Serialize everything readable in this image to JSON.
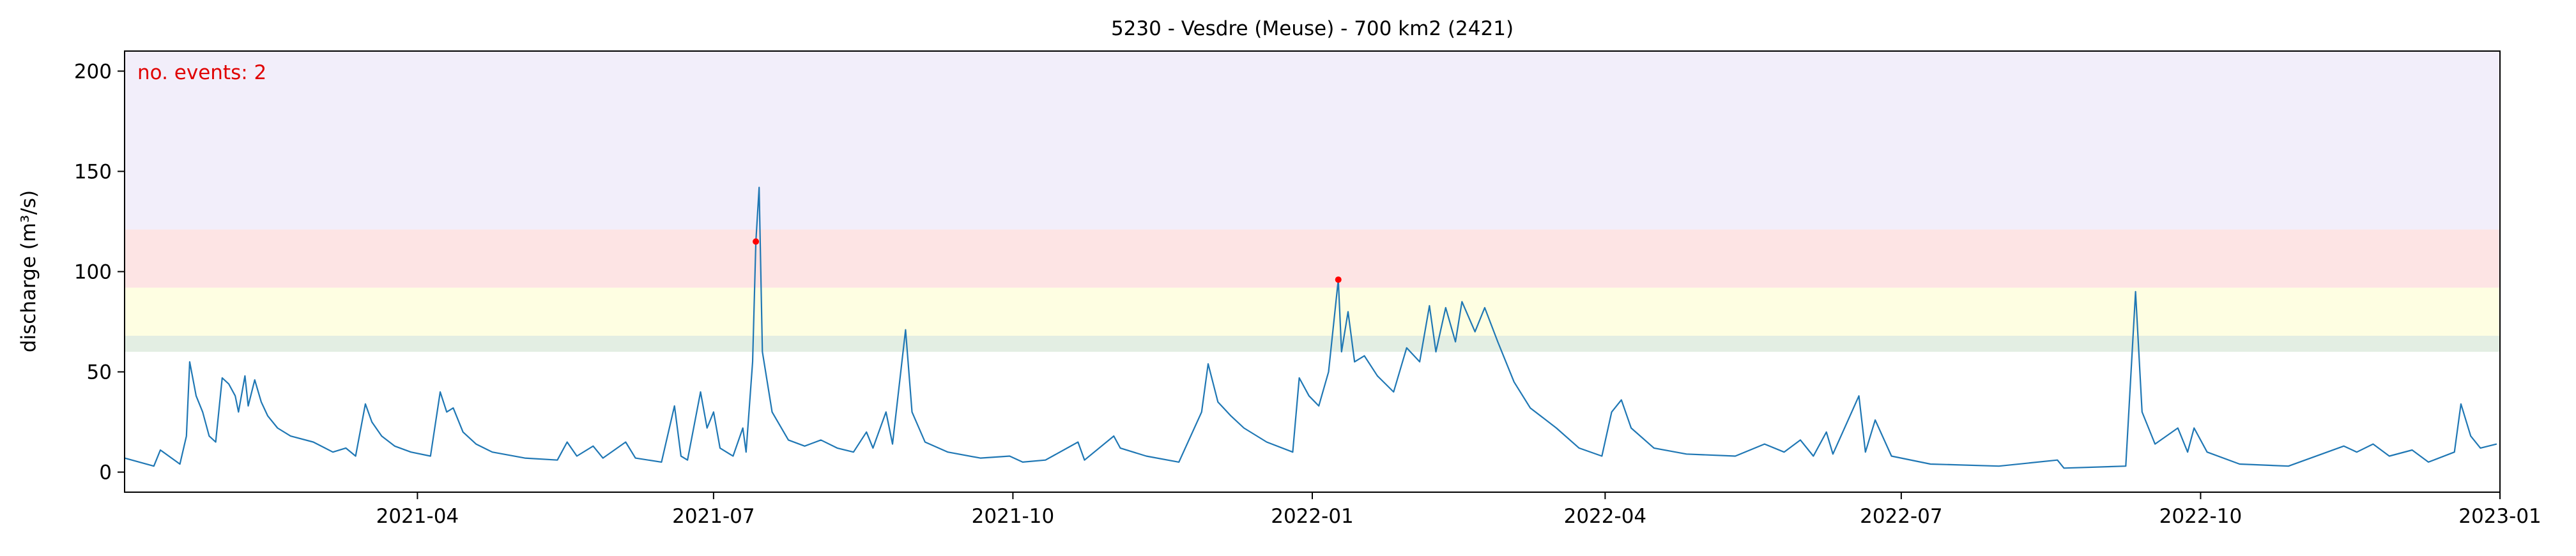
{
  "chart_data": {
    "type": "line",
    "title": "5230 - Vesdre (Meuse) - 700 km2 (2421)",
    "ylabel": "discharge (m³/s)",
    "annotation": "no. events: 2",
    "annotation_color": "#e00000",
    "xlim": [
      "2021-01-01",
      "2023-01-01"
    ],
    "ylim": [
      -10,
      210
    ],
    "yticks": [
      0,
      50,
      100,
      150,
      200
    ],
    "xticks": [
      {
        "value": "2021-04-01",
        "label": "2021-04"
      },
      {
        "value": "2021-07-01",
        "label": "2021-07"
      },
      {
        "value": "2021-10-01",
        "label": "2021-10"
      },
      {
        "value": "2022-01-01",
        "label": "2022-01"
      },
      {
        "value": "2022-04-01",
        "label": "2022-04"
      },
      {
        "value": "2022-07-01",
        "label": "2022-07"
      },
      {
        "value": "2022-10-01",
        "label": "2022-10"
      },
      {
        "value": "2023-01-01",
        "label": "2023-01"
      }
    ],
    "bands": [
      {
        "from": 60,
        "to": 68,
        "color": "#e3eee3"
      },
      {
        "from": 68,
        "to": 92,
        "color": "#fefee2"
      },
      {
        "from": 92,
        "to": 121,
        "color": "#fde4e4"
      },
      {
        "from": 121,
        "to": 210,
        "color": "#f2eefa"
      }
    ],
    "color": "#1f77b4",
    "x": [
      "2021-01-01",
      "2021-01-10",
      "2021-01-12",
      "2021-01-18",
      "2021-01-20",
      "2021-01-21",
      "2021-01-23",
      "2021-01-25",
      "2021-01-27",
      "2021-01-29",
      "2021-01-31",
      "2021-02-02",
      "2021-02-04",
      "2021-02-05",
      "2021-02-07",
      "2021-02-08",
      "2021-02-10",
      "2021-02-12",
      "2021-02-14",
      "2021-02-17",
      "2021-02-21",
      "2021-02-28",
      "2021-03-06",
      "2021-03-10",
      "2021-03-13",
      "2021-03-16",
      "2021-03-18",
      "2021-03-21",
      "2021-03-25",
      "2021-03-30",
      "2021-04-05",
      "2021-04-08",
      "2021-04-10",
      "2021-04-12",
      "2021-04-15",
      "2021-04-19",
      "2021-04-24",
      "2021-05-04",
      "2021-05-14",
      "2021-05-17",
      "2021-05-20",
      "2021-05-25",
      "2021-05-28",
      "2021-06-04",
      "2021-06-07",
      "2021-06-15",
      "2021-06-19",
      "2021-06-21",
      "2021-06-23",
      "2021-06-27",
      "2021-06-29",
      "2021-07-01",
      "2021-07-03",
      "2021-07-07",
      "2021-07-10",
      "2021-07-11",
      "2021-07-13",
      "2021-07-14",
      "2021-07-15",
      "2021-07-16",
      "2021-07-19",
      "2021-07-24",
      "2021-07-29",
      "2021-08-03",
      "2021-08-08",
      "2021-08-13",
      "2021-08-17",
      "2021-08-19",
      "2021-08-23",
      "2021-08-25",
      "2021-08-29",
      "2021-08-31",
      "2021-09-04",
      "2021-09-11",
      "2021-09-21",
      "2021-09-30",
      "2021-10-04",
      "2021-10-11",
      "2021-10-21",
      "2021-10-23",
      "2021-11-01",
      "2021-11-03",
      "2021-11-11",
      "2021-11-21",
      "2021-11-28",
      "2021-11-30",
      "2021-12-03",
      "2021-12-07",
      "2021-12-11",
      "2021-12-18",
      "2021-12-26",
      "2021-12-28",
      "2021-12-31",
      "2022-01-03",
      "2022-01-06",
      "2022-01-09",
      "2022-01-10",
      "2022-01-12",
      "2022-01-14",
      "2022-01-17",
      "2022-01-21",
      "2022-01-26",
      "2022-01-30",
      "2022-02-03",
      "2022-02-06",
      "2022-02-08",
      "2022-02-11",
      "2022-02-14",
      "2022-02-16",
      "2022-02-20",
      "2022-02-23",
      "2022-02-27",
      "2022-03-04",
      "2022-03-09",
      "2022-03-17",
      "2022-03-24",
      "2022-03-31",
      "2022-04-03",
      "2022-04-06",
      "2022-04-09",
      "2022-04-16",
      "2022-04-26",
      "2022-05-11",
      "2022-05-20",
      "2022-05-26",
      "2022-05-31",
      "2022-06-04",
      "2022-06-08",
      "2022-06-10",
      "2022-06-18",
      "2022-06-20",
      "2022-06-23",
      "2022-06-28",
      "2022-07-10",
      "2022-07-31",
      "2022-08-18",
      "2022-08-20",
      "2022-09-08",
      "2022-09-11",
      "2022-09-13",
      "2022-09-17",
      "2022-09-24",
      "2022-09-27",
      "2022-09-29",
      "2022-10-03",
      "2022-10-13",
      "2022-10-28",
      "2022-11-14",
      "2022-11-18",
      "2022-11-23",
      "2022-11-28",
      "2022-12-05",
      "2022-12-10",
      "2022-12-18",
      "2022-12-20",
      "2022-12-23",
      "2022-12-26",
      "2022-12-31"
    ],
    "values": [
      7,
      3,
      11,
      4,
      18,
      55,
      38,
      30,
      18,
      15,
      47,
      44,
      38,
      30,
      48,
      33,
      46,
      35,
      28,
      22,
      18,
      15,
      10,
      12,
      8,
      34,
      25,
      18,
      13,
      10,
      8,
      40,
      30,
      32,
      20,
      14,
      10,
      7,
      6,
      15,
      8,
      13,
      7,
      15,
      7,
      5,
      33,
      8,
      6,
      40,
      22,
      30,
      12,
      8,
      22,
      10,
      55,
      115,
      142,
      60,
      30,
      16,
      13,
      16,
      12,
      10,
      20,
      12,
      30,
      14,
      71,
      30,
      15,
      10,
      7,
      8,
      5,
      6,
      15,
      6,
      18,
      12,
      8,
      5,
      30,
      54,
      35,
      28,
      22,
      15,
      10,
      47,
      38,
      33,
      50,
      96,
      60,
      80,
      55,
      58,
      48,
      40,
      62,
      55,
      83,
      60,
      82,
      65,
      85,
      70,
      82,
      65,
      45,
      32,
      22,
      12,
      8,
      30,
      36,
      22,
      12,
      9,
      8,
      14,
      10,
      16,
      8,
      20,
      9,
      38,
      10,
      26,
      8,
      4,
      3,
      6,
      2,
      3,
      90,
      30,
      14,
      22,
      10,
      22,
      10,
      4,
      3,
      13,
      10,
      14,
      8,
      11,
      5,
      10,
      34,
      18,
      12,
      14
    ],
    "events": {
      "x": [
        "2021-07-14",
        "2022-01-09"
      ],
      "values": [
        115,
        96
      ],
      "color": "#ff0000"
    }
  }
}
